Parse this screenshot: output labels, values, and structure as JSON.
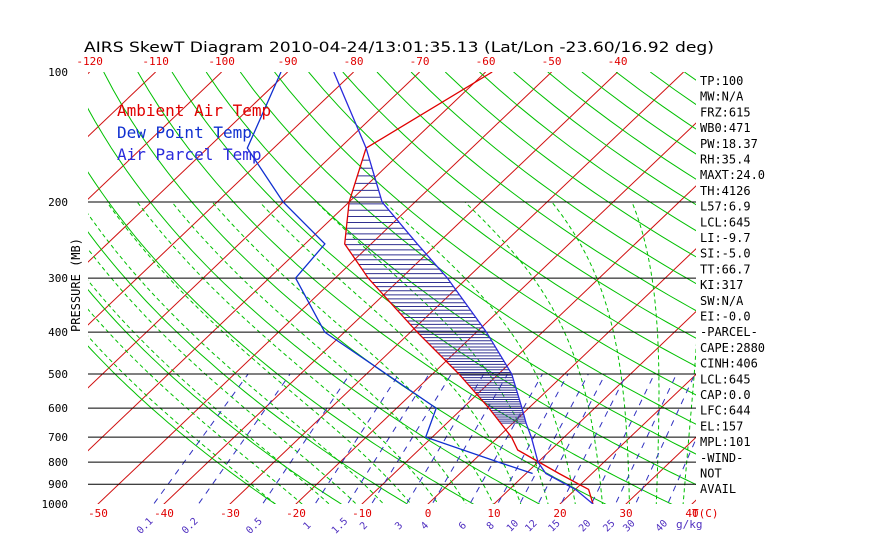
{
  "chart_data": {
    "type": "line",
    "title": "AIRS SkewT Diagram 2010-04-24/13:01:35.13 (Lat/Lon -23.60/16.92 deg)",
    "ylabel": "PRESSURE (MB)",
    "xlabel_temp": "T(C)",
    "xlabel_mixing": "g/kg",
    "y_scale": "log",
    "ylim": [
      1000,
      100
    ],
    "xlim": [
      -50,
      40
    ],
    "pressure_ticks": [
      100,
      200,
      300,
      400,
      500,
      600,
      700,
      800,
      900,
      1000
    ],
    "top_temp_ticks": [
      -120,
      -110,
      -100,
      -90,
      -80,
      -70,
      -60,
      -50,
      -40
    ],
    "bottom_temp_ticks": [
      -50,
      -40,
      -30,
      -20,
      -10,
      0,
      10,
      20,
      30,
      40
    ],
    "mixing_ratio_ticks": [
      "0.1",
      "0.2",
      "0.5",
      "1",
      "1.5",
      "2",
      "3",
      "4",
      "6",
      "8",
      "10",
      "12",
      "15",
      "20",
      "25",
      "30",
      "40"
    ],
    "legend": [
      {
        "label": "Ambient Air Temp",
        "color": "#e00000"
      },
      {
        "label": "Dew Point Temp",
        "color": "#1030d0"
      },
      {
        "label": "Air Parcel Temp",
        "color": "#2a2adc"
      }
    ],
    "series": [
      {
        "name": "Ambient Air Temp",
        "color": "#e00000",
        "points": [
          [
            1000,
            25.0
          ],
          [
            925,
            22.0
          ],
          [
            850,
            15.0
          ],
          [
            750,
            5.0
          ],
          [
            700,
            2.0
          ],
          [
            600,
            -6.0
          ],
          [
            500,
            -16.0
          ],
          [
            400,
            -29.0
          ],
          [
            300,
            -45.0
          ],
          [
            250,
            -54.0
          ],
          [
            200,
            -60.0
          ],
          [
            150,
            -66.0
          ],
          [
            100,
            -59.0
          ]
        ]
      },
      {
        "name": "Dew Point Temp",
        "color": "#1030d0",
        "points": [
          [
            850,
            11.0
          ],
          [
            800,
            4.0
          ],
          [
            700,
            -11.0
          ],
          [
            600,
            -14.0
          ],
          [
            500,
            -27.0
          ],
          [
            400,
            -43.0
          ],
          [
            300,
            -56.0
          ],
          [
            250,
            -57.0
          ],
          [
            200,
            -70.0
          ],
          [
            150,
            -84.0
          ],
          [
            100,
            -91.0
          ]
        ]
      },
      {
        "name": "Air Parcel Temp",
        "color": "#2a2adc",
        "points": [
          [
            1000,
            25.0
          ],
          [
            925,
            20.0
          ],
          [
            850,
            13.0
          ],
          [
            800,
            10.0
          ],
          [
            700,
            5.0
          ],
          [
            650,
            2.0
          ],
          [
            600,
            -1.0
          ],
          [
            500,
            -8.0
          ],
          [
            400,
            -18.5
          ],
          [
            300,
            -33.0
          ],
          [
            250,
            -43.0
          ],
          [
            200,
            -55.0
          ],
          [
            150,
            -66.0
          ],
          [
            100,
            -83.0
          ]
        ]
      }
    ],
    "stats": [
      "TP:100",
      "MW:N/A",
      "FRZ:615",
      "WB0:471",
      "PW:18.37",
      "RH:35.4",
      "MAXT:24.0",
      "TH:4126",
      "L57:6.9",
      "LCL:645",
      "LI:-9.7",
      "SI:-5.0",
      "TT:66.7",
      "KI:317",
      "SW:N/A",
      "EI:-0.0",
      "-PARCEL-",
      "CAPE:2880",
      "CINH:406",
      "LCL:645",
      "CAP:0.0",
      "LFC:644",
      "EL:157",
      "MPL:101",
      "-WIND-",
      "NOT",
      "AVAIL"
    ],
    "colors": {
      "isotherm": "#d01010",
      "dry_adiabat": "#00c000",
      "moist_adiabat": "#00c000",
      "mixing_ratio": "#3030c0",
      "isobar": "#000000",
      "cape_hatch": "#303090"
    }
  }
}
